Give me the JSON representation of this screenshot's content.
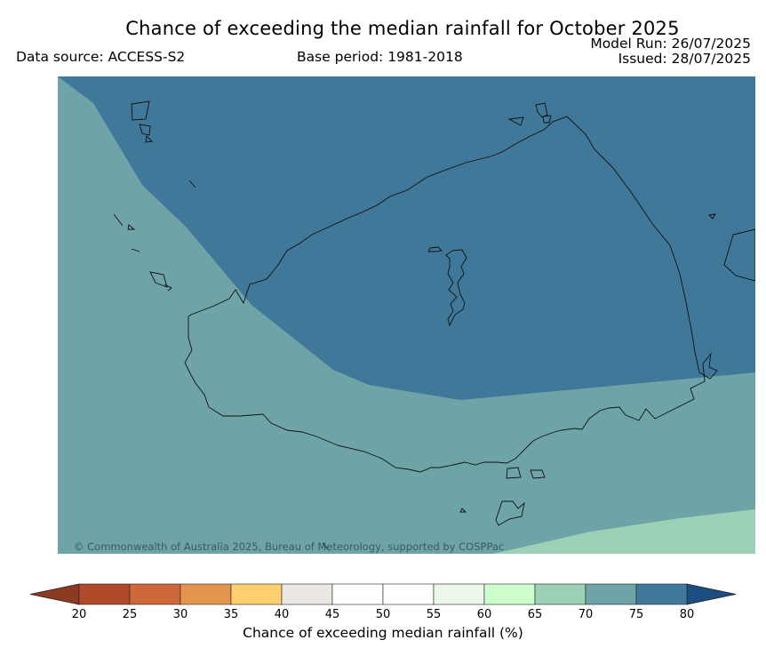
{
  "header": {
    "title": "Chance of exceeding the median rainfall for October 2025",
    "data_source": "Data source: ACCESS-S2",
    "base_period": "Base period: 1981-2018",
    "model_run": "Model Run: 26/07/2025",
    "issued": "Issued: 28/07/2025"
  },
  "map": {
    "copyright": "© Commonwealth of Australia 2025, Bureau of Meteorology, supported by COSPPac",
    "regions": [
      {
        "category": "75-80",
        "color": "#3f7898"
      },
      {
        "category": "70-75",
        "color": "#6ea4a8"
      },
      {
        "category": "65-70",
        "color": "#9dd1b7"
      }
    ]
  },
  "colorbar": {
    "label": "Chance of exceeding median rainfall (%)",
    "ticks": [
      "20",
      "25",
      "30",
      "35",
      "40",
      "45",
      "50",
      "55",
      "60",
      "65",
      "70",
      "75",
      "80"
    ],
    "under_color": "#8c3a22",
    "over_color": "#1a4d80",
    "colors": [
      "#b04a2a",
      "#cf6838",
      "#e3944d",
      "#fdcf6f",
      "#ece7e2",
      "#ffffff",
      "#ffffff",
      "#edf7ea",
      "#ccffcc",
      "#9dd1b7",
      "#6ea4a8",
      "#3f7898"
    ]
  }
}
